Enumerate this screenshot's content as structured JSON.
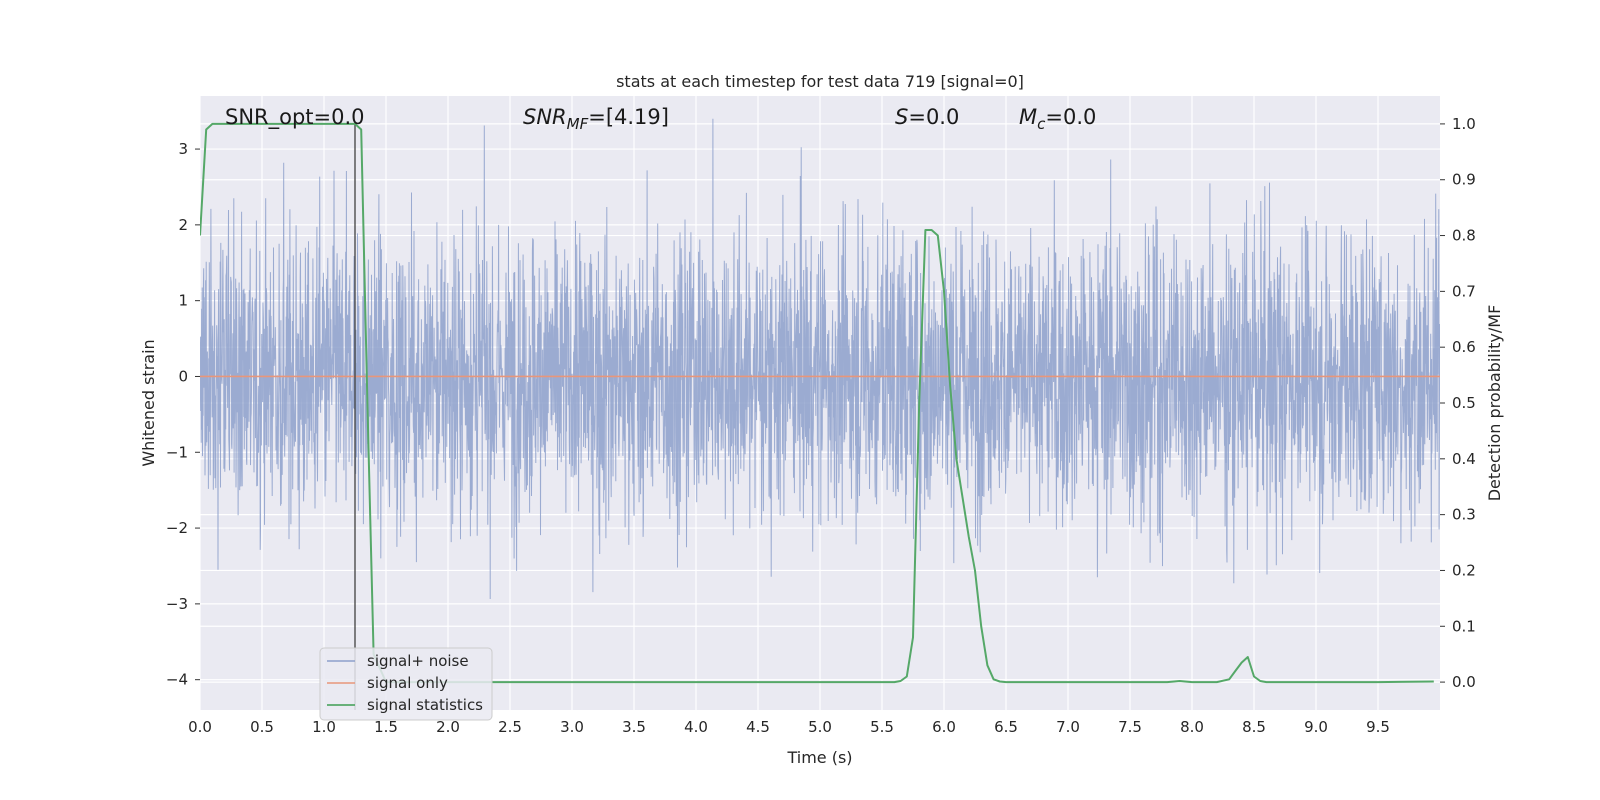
{
  "chart_data": {
    "type": "line",
    "title": "stats at each timestep for test data 719 [signal=0]",
    "xlabel": "Time (s)",
    "ylabel_left": "Whitened strain",
    "ylabel_right": "Detection probability/MF",
    "xlim": [
      0.0,
      10.0
    ],
    "ylim_left": [
      -4.4,
      3.7
    ],
    "ylim_right": [
      -0.05,
      1.05
    ],
    "grid": true,
    "x_ticks": [
      "0.0",
      "0.5",
      "1.0",
      "1.5",
      "2.0",
      "2.5",
      "3.0",
      "3.5",
      "4.0",
      "4.5",
      "5.0",
      "5.5",
      "6.0",
      "6.5",
      "7.0",
      "7.5",
      "8.0",
      "8.5",
      "9.0",
      "9.5"
    ],
    "y_left_ticks": [
      "3",
      "2",
      "1",
      "0",
      "−1",
      "−2",
      "−3",
      "−4"
    ],
    "y_right_ticks": [
      "1.0",
      "0.9",
      "0.8",
      "0.7",
      "0.6",
      "0.5",
      "0.4",
      "0.3",
      "0.2",
      "0.1",
      "0.0"
    ],
    "annotations": {
      "snr_opt": "SNR_opt=0.0",
      "snr_mf_base": "SNR",
      "snr_mf_sub": "MF",
      "snr_mf_val": "=[4.19]",
      "s_base": "S",
      "s_val": "=0.0",
      "mc_base": "M",
      "mc_sub": "c",
      "mc_val": "=0.0"
    },
    "vertical_marker_x": 1.25,
    "legend": {
      "placement": "lower-left",
      "entries": [
        "signal+ noise",
        "signal only",
        "signal statistics"
      ]
    },
    "series": [
      {
        "name": "signal+ noise",
        "axis": "left",
        "kind": "noise",
        "color": "#8da0cb",
        "description_values": {
          "typical_range": [
            -2.4,
            2.6
          ],
          "extreme_max": 3.4,
          "extreme_min": -4.0
        }
      },
      {
        "name": "signal only",
        "axis": "left",
        "kind": "line",
        "color": "#e8967a",
        "x": [
          0.0,
          10.0
        ],
        "y": [
          0.0,
          0.0
        ]
      },
      {
        "name": "signal statistics",
        "axis": "right",
        "kind": "line",
        "color": "#55a868",
        "x": [
          0.0,
          0.05,
          0.1,
          0.2,
          0.5,
          1.0,
          1.2,
          1.25,
          1.3,
          1.35,
          1.4,
          1.5,
          2.0,
          3.0,
          4.0,
          5.0,
          5.5,
          5.6,
          5.65,
          5.7,
          5.75,
          5.8,
          5.85,
          5.9,
          5.95,
          6.0,
          6.05,
          6.1,
          6.15,
          6.2,
          6.25,
          6.3,
          6.35,
          6.4,
          6.45,
          6.5,
          6.6,
          7.0,
          7.5,
          7.8,
          7.9,
          8.0,
          8.2,
          8.3,
          8.35,
          8.4,
          8.45,
          8.5,
          8.55,
          8.6,
          9.0,
          9.5,
          9.95
        ],
        "y": [
          0.8,
          0.99,
          1.0,
          1.0,
          1.0,
          1.0,
          1.0,
          1.0,
          0.99,
          0.5,
          0.05,
          0.0,
          0.0,
          0.0,
          0.0,
          0.0,
          0.0,
          0.0,
          0.002,
          0.01,
          0.08,
          0.5,
          0.81,
          0.81,
          0.8,
          0.7,
          0.53,
          0.4,
          0.33,
          0.26,
          0.2,
          0.1,
          0.03,
          0.005,
          0.001,
          0.0,
          0.0,
          0.0,
          0.0,
          0.0,
          0.002,
          0.0,
          0.0,
          0.005,
          0.02,
          0.035,
          0.045,
          0.01,
          0.002,
          0.0,
          0.0,
          0.0,
          0.001
        ]
      }
    ]
  }
}
